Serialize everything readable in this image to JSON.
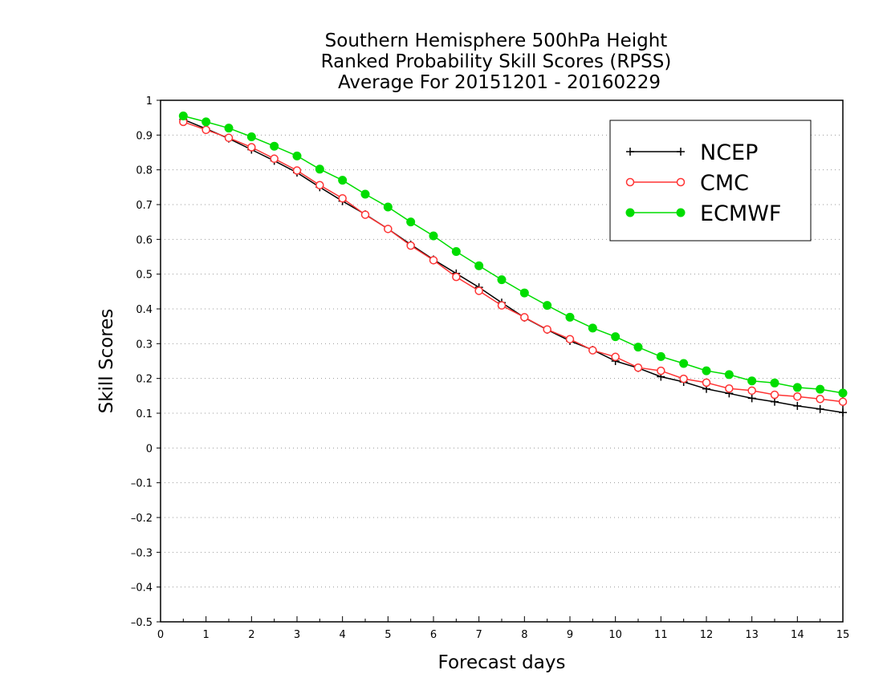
{
  "chart_data": {
    "type": "line",
    "title": [
      "Southern Hemisphere 500hPa Height",
      "Ranked Probability Skill Scores (RPSS)",
      "Average For 20151201 - 20160229"
    ],
    "xlabel": "Forecast days",
    "ylabel": "Skill Scores",
    "xlim": [
      0,
      15
    ],
    "ylim": [
      -0.5,
      1
    ],
    "xticks": [
      0,
      1,
      2,
      3,
      4,
      5,
      6,
      7,
      8,
      9,
      10,
      11,
      12,
      13,
      14,
      15
    ],
    "yticks": [
      -0.5,
      -0.4,
      -0.3,
      -0.2,
      -0.1,
      0,
      0.1,
      0.2,
      0.3,
      0.4,
      0.5,
      0.6,
      0.7,
      0.8,
      0.9,
      1
    ],
    "xtick_labels": [
      "0",
      "1",
      "2",
      "3",
      "4",
      "5",
      "6",
      "7",
      "8",
      "9",
      "10",
      "11",
      "12",
      "13",
      "14",
      "15"
    ],
    "ytick_labels": [
      "–0.5",
      "–0.4",
      "–0.3",
      "–0.2",
      "–0.1",
      "0",
      "0.1",
      "0.2",
      "0.3",
      "0.4",
      "0.5",
      "0.6",
      "0.7",
      "0.8",
      "0.9",
      "1"
    ],
    "grid": "horizontal dotted",
    "legend_position": "top-right",
    "x": [
      0.5,
      1,
      1.5,
      2,
      2.5,
      3,
      3.5,
      4,
      4.5,
      5,
      5.5,
      6,
      6.5,
      7,
      7.5,
      8,
      8.5,
      9,
      9.5,
      10,
      10.5,
      11,
      11.5,
      12,
      12.5,
      13,
      13.5,
      14,
      14.5,
      15
    ],
    "series": [
      {
        "name": "NCEP",
        "color": "#000000",
        "marker": "plus",
        "values": [
          0.945,
          0.918,
          0.89,
          0.858,
          0.826,
          0.792,
          0.75,
          0.71,
          0.672,
          0.63,
          0.585,
          0.542,
          0.502,
          0.462,
          0.418,
          0.375,
          0.34,
          0.308,
          0.282,
          0.25,
          0.23,
          0.205,
          0.19,
          0.17,
          0.157,
          0.143,
          0.133,
          0.121,
          0.112,
          0.102
        ]
      },
      {
        "name": "CMC",
        "color": "#ff3333",
        "marker": "open-circle",
        "values": [
          0.938,
          0.915,
          0.892,
          0.865,
          0.832,
          0.798,
          0.756,
          0.718,
          0.671,
          0.63,
          0.582,
          0.54,
          0.492,
          0.452,
          0.41,
          0.376,
          0.341,
          0.313,
          0.281,
          0.262,
          0.231,
          0.222,
          0.199,
          0.188,
          0.171,
          0.165,
          0.153,
          0.148,
          0.141,
          0.133
        ]
      },
      {
        "name": "ECMWF",
        "color": "#00dd00",
        "marker": "filled-circle",
        "values": [
          0.955,
          0.938,
          0.92,
          0.895,
          0.868,
          0.84,
          0.802,
          0.77,
          0.73,
          0.693,
          0.65,
          0.61,
          0.565,
          0.524,
          0.484,
          0.446,
          0.41,
          0.376,
          0.345,
          0.32,
          0.29,
          0.263,
          0.243,
          0.222,
          0.211,
          0.193,
          0.187,
          0.174,
          0.169,
          0.158
        ]
      }
    ]
  }
}
